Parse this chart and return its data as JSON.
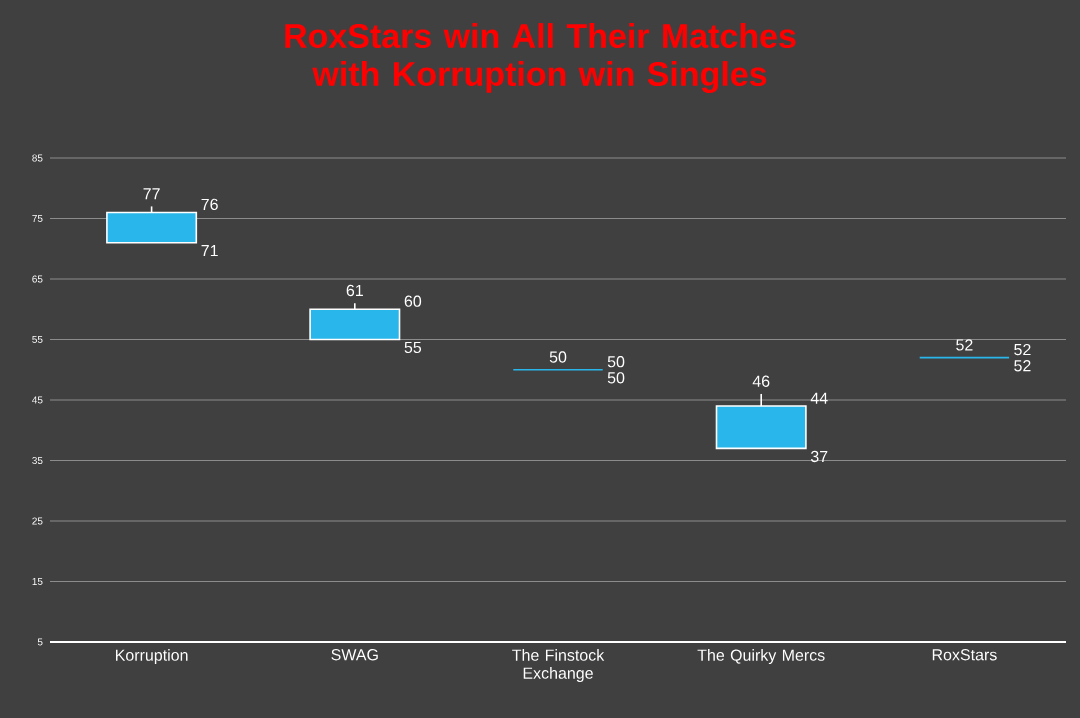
{
  "chart_data": {
    "type": "candlestick",
    "title": "RoxStars win All Their Matches with Korruption win Singles",
    "categories": [
      "Korruption",
      "SWAG",
      "The Finstock Exchange",
      "The Quirky Mercs",
      "RoxStars"
    ],
    "ohlc": [
      [
        71,
        77,
        71,
        76
      ],
      [
        55,
        61,
        55,
        60
      ],
      [
        50,
        50,
        50,
        50
      ],
      [
        37,
        46,
        37,
        44
      ],
      [
        52,
        52,
        52,
        52
      ]
    ],
    "color": "#29b6ea",
    "value_labels": [
      [
        "77",
        "76",
        "71"
      ],
      [
        "61",
        "60",
        "55"
      ],
      [
        "50",
        "50",
        "50"
      ],
      [
        "46",
        "44",
        "37"
      ],
      [
        "52",
        "52",
        "52"
      ]
    ],
    "ylim": [
      5,
      85
    ],
    "yticks": [
      5,
      15,
      25,
      35,
      45,
      55,
      65,
      75,
      85
    ],
    "grid": "y"
  }
}
